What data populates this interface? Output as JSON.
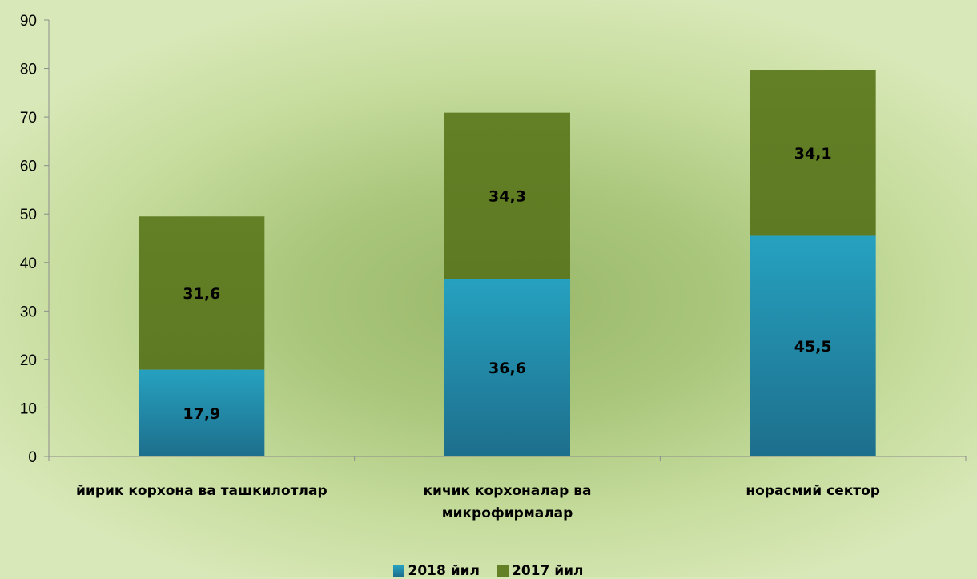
{
  "chart_data": {
    "type": "bar",
    "stacked": true,
    "categories": [
      [
        "йирик корхона ва ташкилотлар"
      ],
      [
        "кичик корхоналар ва",
        "микрофирмалар"
      ],
      [
        "норасмий сектор"
      ]
    ],
    "series": [
      {
        "name": "2018 йил",
        "values": [
          17.9,
          36.6,
          45.5
        ],
        "labels": [
          "17,9",
          "36,6",
          "45,5"
        ],
        "color": "#2196b5"
      },
      {
        "name": "2017 йил",
        "values": [
          31.6,
          34.3,
          34.1
        ],
        "labels": [
          "31,6",
          "34,3",
          "34,1"
        ],
        "color": "#648126"
      }
    ],
    "ylim": [
      0,
      90
    ],
    "yticks": [
      0,
      10,
      20,
      30,
      40,
      50,
      60,
      70,
      80,
      90
    ],
    "grid": false,
    "legend_position": "bottom"
  }
}
